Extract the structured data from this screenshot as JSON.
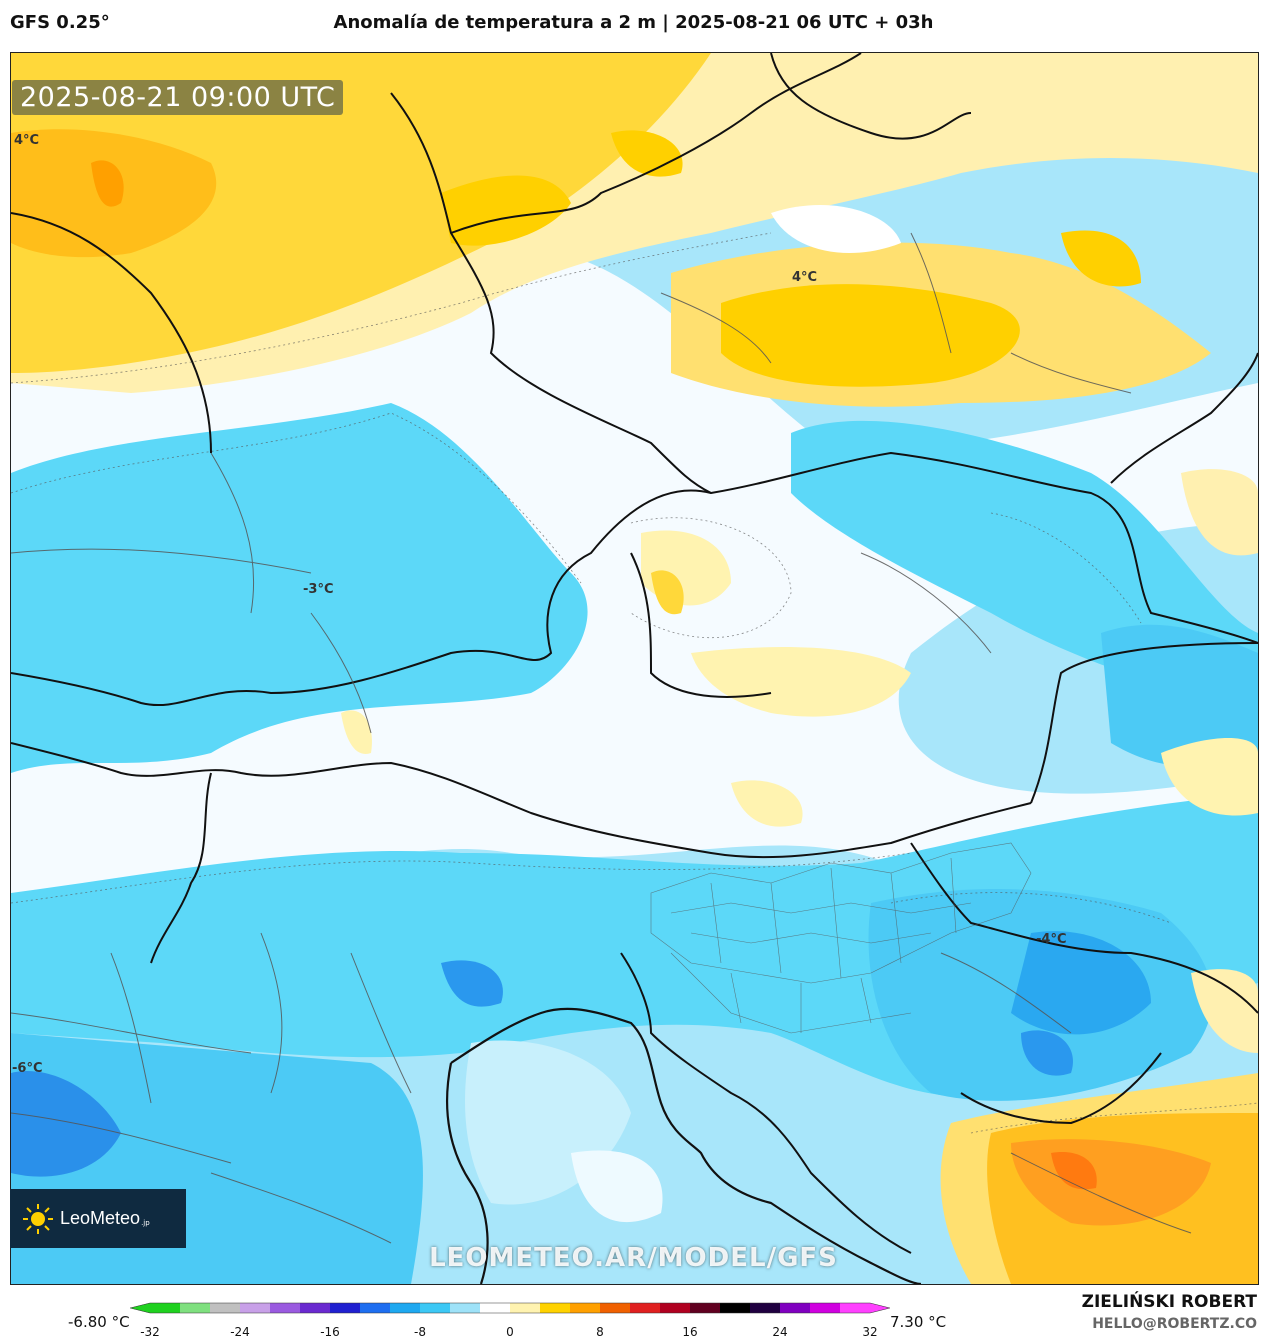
{
  "header": {
    "model": "GFS 0.25°",
    "title": "Anomalía de temperatura a 2 m | 2025-08-21 06 UTC + 03h"
  },
  "map": {
    "timestamp": "2025-08-21 09:00 UTC",
    "labels": [
      "4°C",
      "4°C",
      "-3°C",
      "-4°C",
      "-6°C"
    ],
    "watermark": "LEOMETEO.AR/MODEL/GFS"
  },
  "logo": {
    "name": "LeoMeteo",
    "suffix": ".jp",
    "icon": "sun-icon"
  },
  "colorbar": {
    "min_label": "-6.80 °C",
    "max_label": "7.30 °C",
    "ticks": [
      "-32",
      "-24",
      "-16",
      "-8",
      "0",
      "8",
      "16",
      "24",
      "32"
    ],
    "colors": [
      "#1fd11f",
      "#7fe07f",
      "#c0c0c0",
      "#c8a0e8",
      "#9a5ae0",
      "#6a2ad0",
      "#2020d0",
      "#1e6ef0",
      "#1ea8f0",
      "#3cc8f5",
      "#9ee2f8",
      "#ffffff",
      "#fff3b0",
      "#ffd200",
      "#ffa000",
      "#f06000",
      "#e02020",
      "#b00020",
      "#600020",
      "#000000",
      "#200040",
      "#8000c0",
      "#d000e0",
      "#ff40ff"
    ]
  },
  "credit": {
    "name": "ZIELIŃSKI ROBERT",
    "email": "HELLO@ROBERTZ.CO"
  }
}
